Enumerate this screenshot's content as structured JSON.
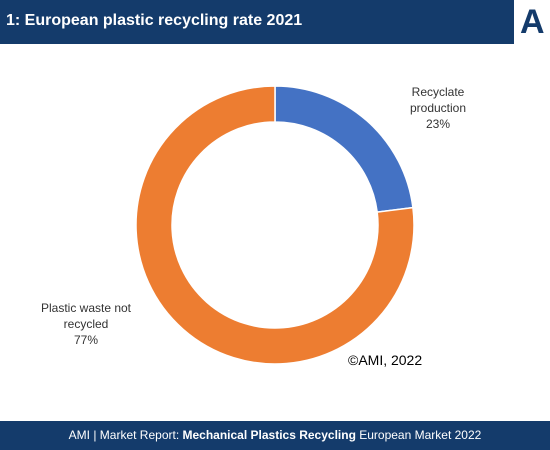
{
  "header": {
    "title": "1: European plastic recycling rate 2021",
    "logo_text": "A"
  },
  "chart_data": {
    "type": "pie",
    "donut": true,
    "title": "1: European plastic recycling rate 2021",
    "slices": [
      {
        "label_line1": "Recyclate",
        "label_line2": "production",
        "value": 23,
        "value_label": "23%",
        "color": "#4472c4"
      },
      {
        "label_line1": "Plastic waste not",
        "label_line2": "recycled",
        "value": 77,
        "value_label": "77%",
        "color": "#ed7d31"
      }
    ]
  },
  "copyright": "©AMI, 2022",
  "footer": {
    "part1": "AMI | Market Report: ",
    "part2": "Mechanical Plastics Recycling",
    "part3": " European Market 2022"
  }
}
